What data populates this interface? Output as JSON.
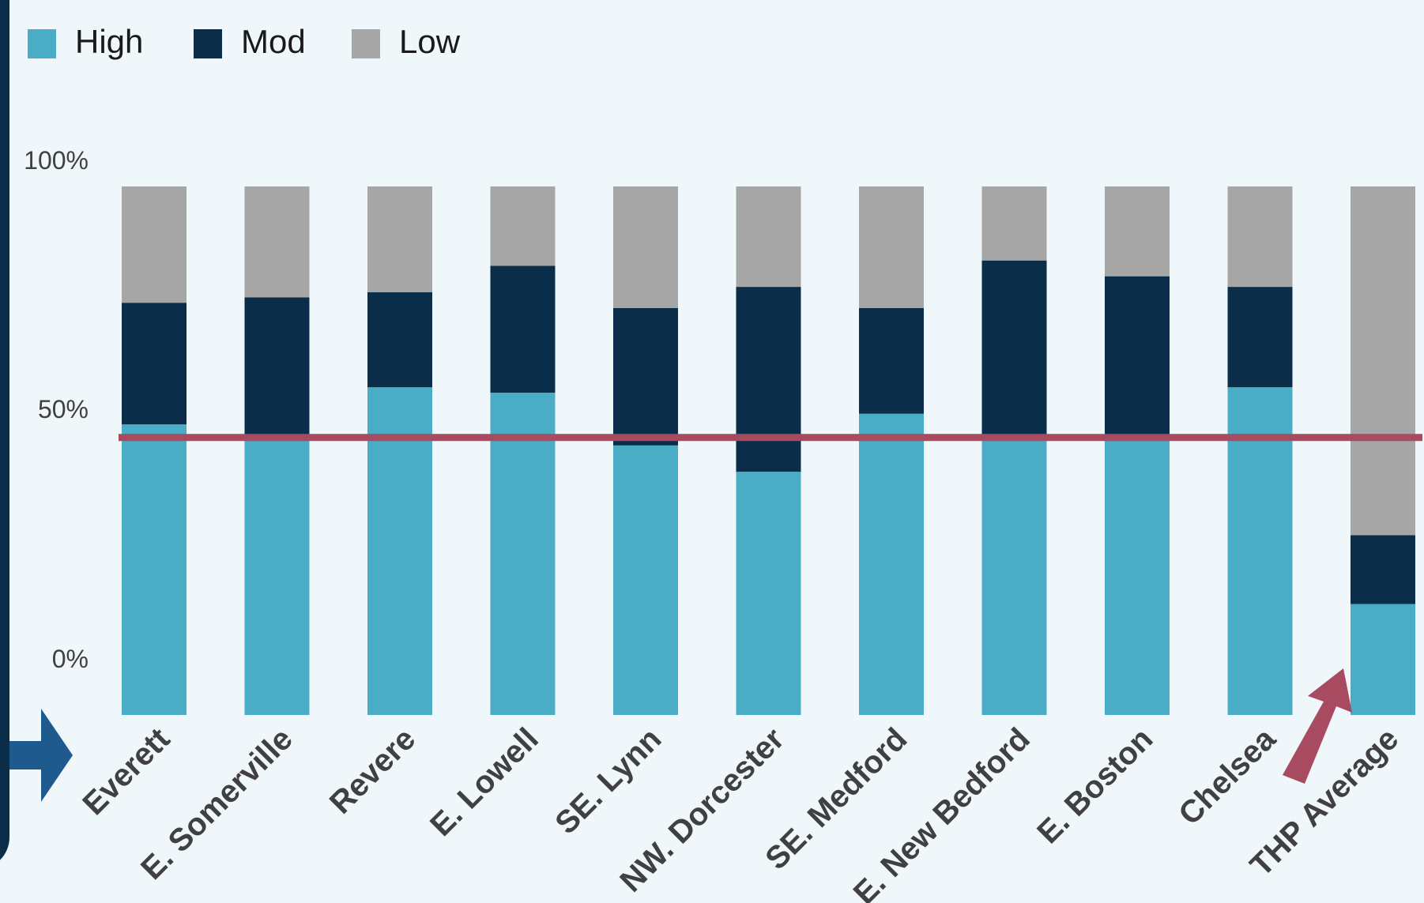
{
  "chart_data": {
    "type": "bar",
    "stacked": true,
    "categories": [
      "Everett",
      "E. Somerville",
      "Revere",
      "E. Lowell",
      "SE. Lynn",
      "NW. Dorcester",
      "SE. Medford",
      "E. New Bedford",
      "E. Boston",
      "Chelsea",
      "THP Average"
    ],
    "series": [
      {
        "name": "High",
        "color": "#4bacc6",
        "values": [
          55,
          53,
          62,
          61,
          51,
          46,
          57,
          52,
          52,
          62,
          21
        ]
      },
      {
        "name": "Mod",
        "color": "#0a2e4a",
        "values": [
          23,
          26,
          18,
          24,
          26,
          35,
          20,
          34,
          31,
          19,
          13
        ]
      },
      {
        "name": "Low",
        "color": "#a6a6a6",
        "values": [
          22,
          21,
          20,
          15,
          23,
          19,
          23,
          14,
          17,
          19,
          66
        ]
      }
    ],
    "yticks": [
      "100%",
      "50%",
      "0%"
    ],
    "ylim": [
      0,
      100
    ],
    "reference_line": {
      "value": 52.5,
      "color": "#a84a60"
    },
    "legend_position": "top-left",
    "grid": false
  },
  "colors": {
    "background": "#f0f7fa",
    "sidebar": "#0a2e4a",
    "pointer_arrow": "#1e5a8e",
    "highlight_arrow": "#a84a60"
  },
  "icons": {
    "left_arrow": "right-arrow-icon",
    "thp_arrow": "diagonal-up-arrow-icon"
  }
}
